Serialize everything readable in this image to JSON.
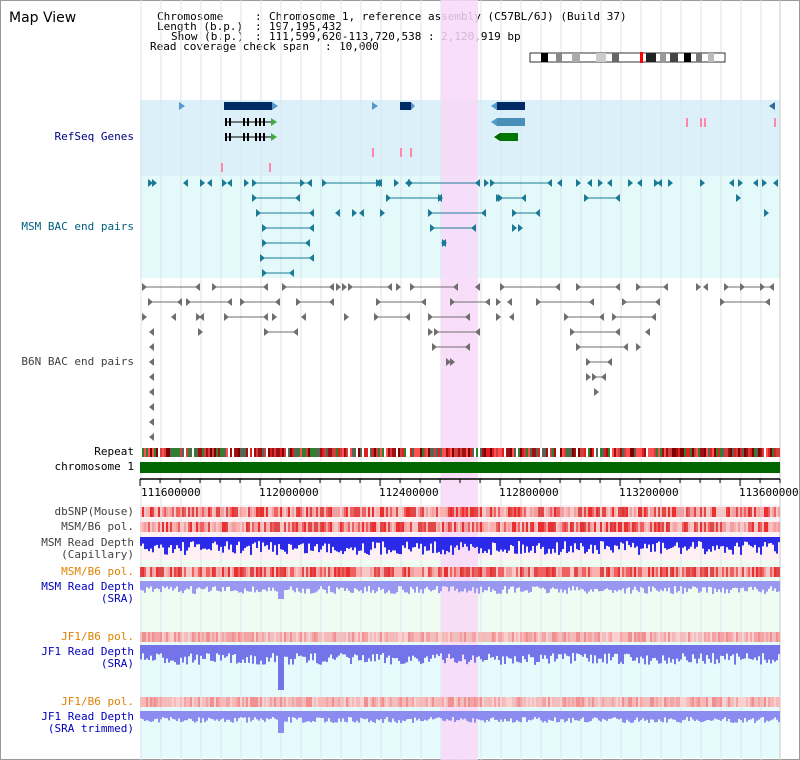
{
  "page": {
    "title": "Map View"
  },
  "info": {
    "chromosome_key": "Chromosome",
    "chromosome_val": "Chromosome 1, reference assembly (C57BL/6J) (Build 37)",
    "length_key": "Length (b.p.)",
    "length_val": "197,195,432",
    "show_key": "Show (b.p.)",
    "show_val": "111,599,620-113,720,538 : 2,120,919 bp",
    "coverage_key": "Read coverage check span",
    "coverage_val": "10,000"
  },
  "tracks": {
    "refseq": "RefSeq Genes",
    "msm_bac": "MSM BAC end pairs",
    "b6n_bac": "B6N BAC end pairs",
    "repeat": "Repeat",
    "chromosome": "chromosome 1",
    "dbsnp": "dbSNP(Mouse)",
    "msm_b6_pol": "MSM/B6 pol.",
    "msm_depth_cap_1": "MSM Read Depth",
    "msm_depth_cap_2": "(Capillary)",
    "msm_b6_pol_2": "MSM/B6 pol.",
    "msm_depth_sra_1": "MSM Read Depth",
    "msm_depth_sra_2": "(SRA)",
    "jf1_pol": "JF1/B6 pol.",
    "jf1_depth_1": "JF1 Read Depth",
    "jf1_depth_2": "(SRA)",
    "jf1_pol_2": "JF1/B6 pol.",
    "jf1_trim_1": "JF1 Read Depth",
    "jf1_trim_2": "(SRA trimmed)"
  },
  "ruler": {
    "ticks": [
      "111600000",
      "112000000",
      "112400000",
      "112800000",
      "113200000",
      "113600000"
    ]
  },
  "colors": {
    "refseq_label": "#000080",
    "msm_label": "#006080",
    "b6n_label": "#404040",
    "orange_label": "#e08000",
    "blue_label": "#0000c0",
    "highlight": "#f8d8f8",
    "chromosome_bar": "#006600"
  }
}
